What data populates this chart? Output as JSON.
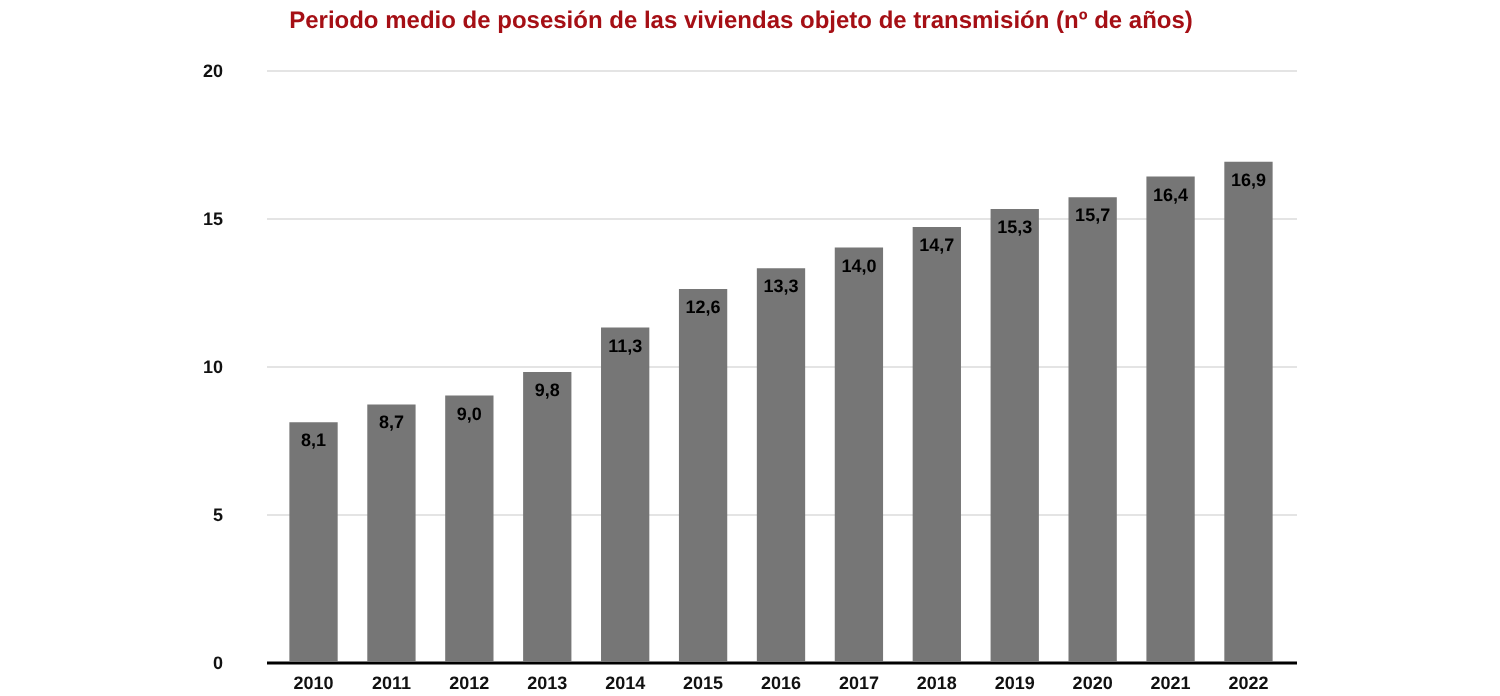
{
  "chart_data": {
    "type": "bar",
    "title": "Periodo medio de posesión de las viviendas objeto de transmisión (nº de años)",
    "categories": [
      "2010",
      "2011",
      "2012",
      "2013",
      "2014",
      "2015",
      "2016",
      "2017",
      "2018",
      "2019",
      "2020",
      "2021",
      "2022"
    ],
    "values": [
      8.1,
      8.7,
      9.0,
      9.8,
      11.3,
      12.6,
      13.3,
      14.0,
      14.7,
      15.3,
      15.7,
      16.4,
      16.9
    ],
    "value_labels": [
      "8,1",
      "8,7",
      "9,0",
      "9,8",
      "11,3",
      "12,6",
      "13,3",
      "14,0",
      "14,7",
      "15,3",
      "15,7",
      "16,4",
      "16,9"
    ],
    "color": "#767676",
    "ylim": [
      0,
      20
    ],
    "yticks": [
      0,
      5,
      10,
      15,
      20
    ],
    "grid": "y"
  }
}
